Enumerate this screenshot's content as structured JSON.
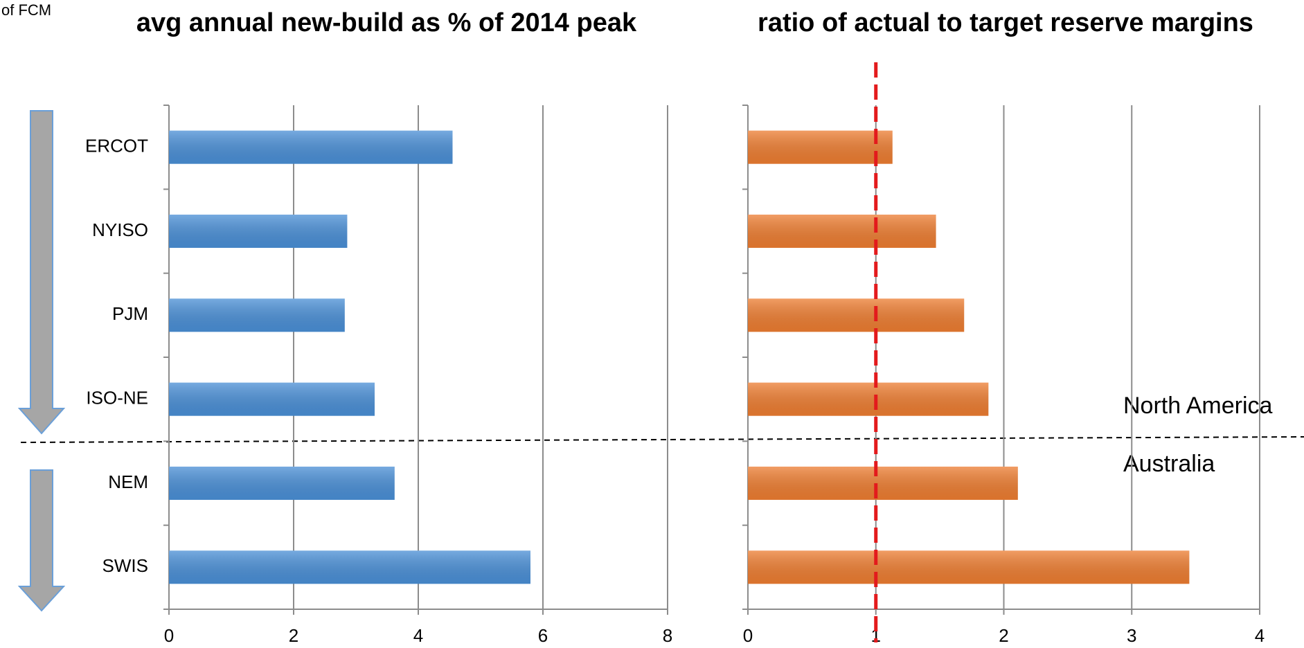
{
  "chart_data": [
    {
      "type": "bar",
      "orientation": "horizontal",
      "title": "avg annual new-build as % of 2014 peak",
      "categories": [
        "ERCOT",
        "NYISO",
        "PJM",
        "ISO-NE",
        "NEM",
        "SWIS"
      ],
      "values": [
        4.55,
        2.86,
        2.82,
        3.3,
        3.62,
        5.8
      ],
      "color": "#4a8fd6",
      "xlim": [
        0,
        8
      ],
      "xticks": [
        0,
        2,
        4,
        6,
        8
      ],
      "grid": true,
      "annotations": [
        "of FCM"
      ]
    },
    {
      "type": "bar",
      "orientation": "horizontal",
      "title": "ratio of actual to target reserve margins",
      "values": [
        1.13,
        1.47,
        1.69,
        1.88,
        2.11,
        3.45
      ],
      "color": "#ed7d31",
      "xlim": [
        0,
        4
      ],
      "xticks": [
        0,
        1,
        2,
        3,
        4
      ],
      "grid": true,
      "reference_line": 1,
      "reference_color": "#e31a1c",
      "annotations": [
        "North America",
        "Australia"
      ]
    }
  ]
}
